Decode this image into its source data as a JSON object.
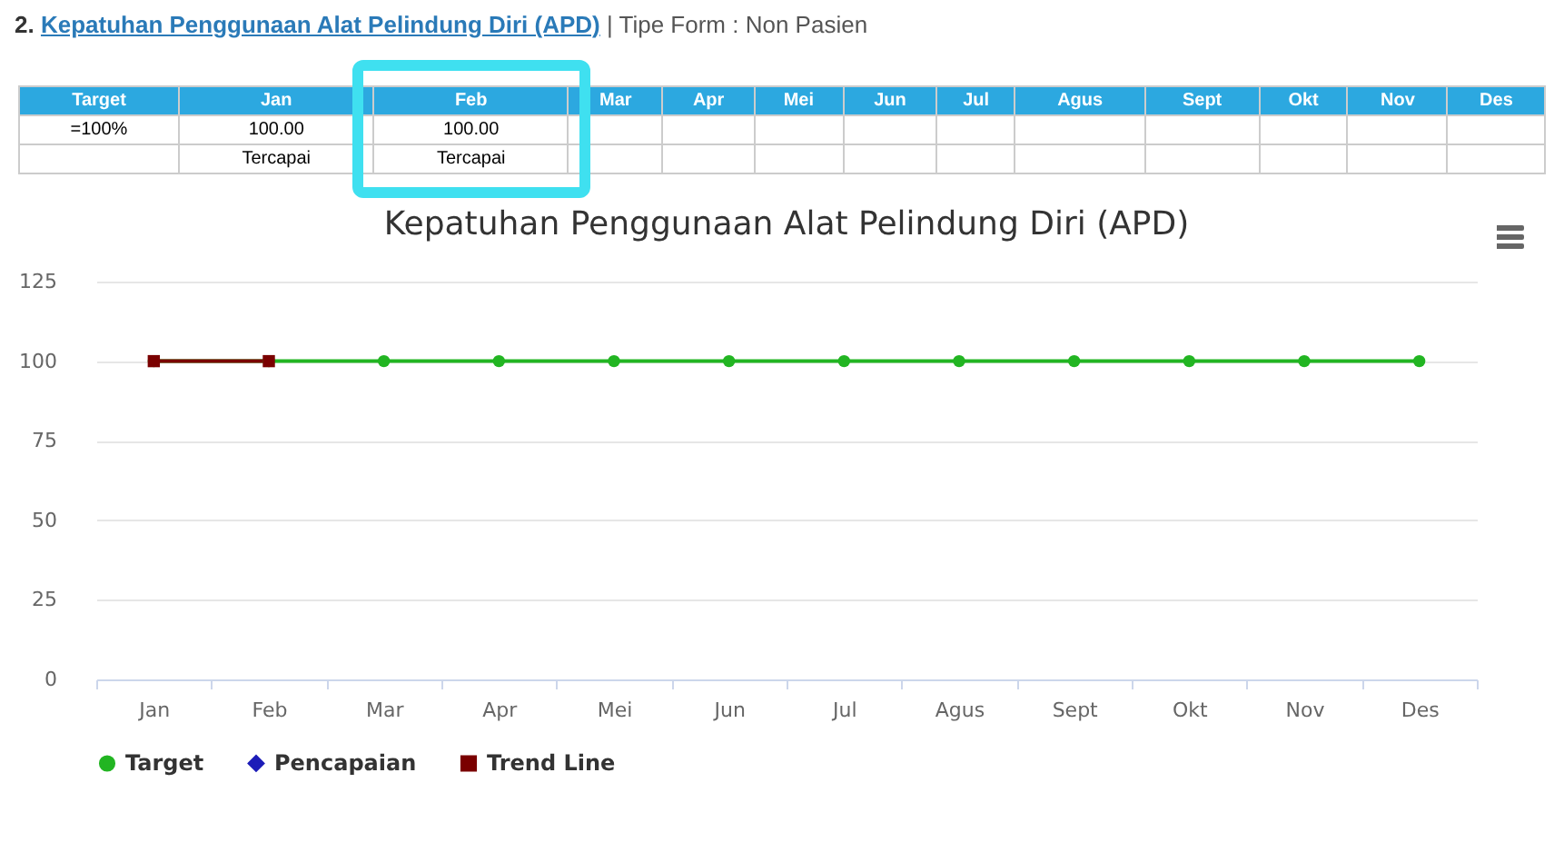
{
  "chart_data": {
    "type": "line",
    "title": "Kepatuhan Penggunaan Alat Pelindung Diri (APD)",
    "categories": [
      "Jan",
      "Feb",
      "Mar",
      "Apr",
      "Mei",
      "Jun",
      "Jul",
      "Agus",
      "Sept",
      "Okt",
      "Nov",
      "Des"
    ],
    "ylim": [
      0,
      125
    ],
    "yticks": [
      0,
      25,
      50,
      75,
      100,
      125
    ],
    "grid": "y",
    "legend": "bottom",
    "annotations": [
      "2.",
      "Kepatuhan Penggunaan Alat Pelindung Diri (APD)",
      "| Tipe Form : Non Pasien",
      "=100%",
      "100.00",
      "100.00",
      "Tercapai",
      "Tercapai"
    ],
    "series": [
      {
        "name": "Target",
        "color": "#22b522",
        "marker": "circle",
        "values": [
          100,
          100,
          100,
          100,
          100,
          100,
          100,
          100,
          100,
          100,
          100,
          100
        ]
      },
      {
        "name": "Pencapaian",
        "color": "#1c1cb8",
        "marker": "diamond",
        "values": [
          null,
          null,
          null,
          null,
          null,
          null,
          null,
          null,
          null,
          null,
          null,
          null
        ]
      },
      {
        "name": "Trend Line",
        "color": "#7a0000",
        "marker": "square",
        "values": [
          100,
          100,
          null,
          null,
          null,
          null,
          null,
          null,
          null,
          null,
          null,
          null
        ]
      }
    ]
  }
}
